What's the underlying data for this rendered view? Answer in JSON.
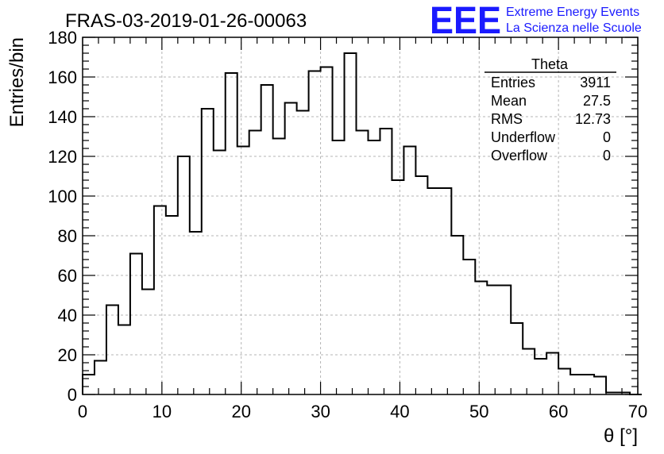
{
  "title": "FRAS-03-2019-01-26-00063",
  "brand": {
    "logo_text": "EEE",
    "line1": "Extreme Energy Events",
    "line2": "La Scienza nelle Scuole",
    "color": "#1a1aff"
  },
  "stats": {
    "header": "Theta",
    "rows": [
      {
        "label": "Entries",
        "value": "3911"
      },
      {
        "label": "Mean",
        "value": "27.5"
      },
      {
        "label": "RMS",
        "value": "12.73"
      },
      {
        "label": "Underflow",
        "value": "0"
      },
      {
        "label": "Overflow",
        "value": "0"
      }
    ]
  },
  "chart_data": {
    "type": "bar",
    "style": "step-histogram",
    "title": "FRAS-03-2019-01-26-00063",
    "xlabel": "θ [°]",
    "ylabel": "Entries/bin",
    "xlim": [
      0,
      70
    ],
    "ylim": [
      0,
      180
    ],
    "bin_start": 0,
    "bin_width": 1.5,
    "values": [
      10,
      17,
      45,
      35,
      71,
      53,
      95,
      90,
      120,
      82,
      144,
      123,
      162,
      125,
      133,
      156,
      129,
      147,
      143,
      163,
      165,
      128,
      172,
      133,
      128,
      134,
      108,
      125,
      110,
      104,
      104,
      80,
      68,
      57,
      55,
      55,
      36,
      23,
      18,
      21,
      13,
      10,
      10,
      9,
      1,
      1,
      0
    ],
    "xticks": [
      "0",
      "10",
      "20",
      "30",
      "40",
      "50",
      "60",
      "70"
    ],
    "yticks": [
      "0",
      "20",
      "40",
      "60",
      "80",
      "100",
      "120",
      "140",
      "160",
      "180"
    ],
    "grid": true,
    "line_color": "#000000"
  }
}
